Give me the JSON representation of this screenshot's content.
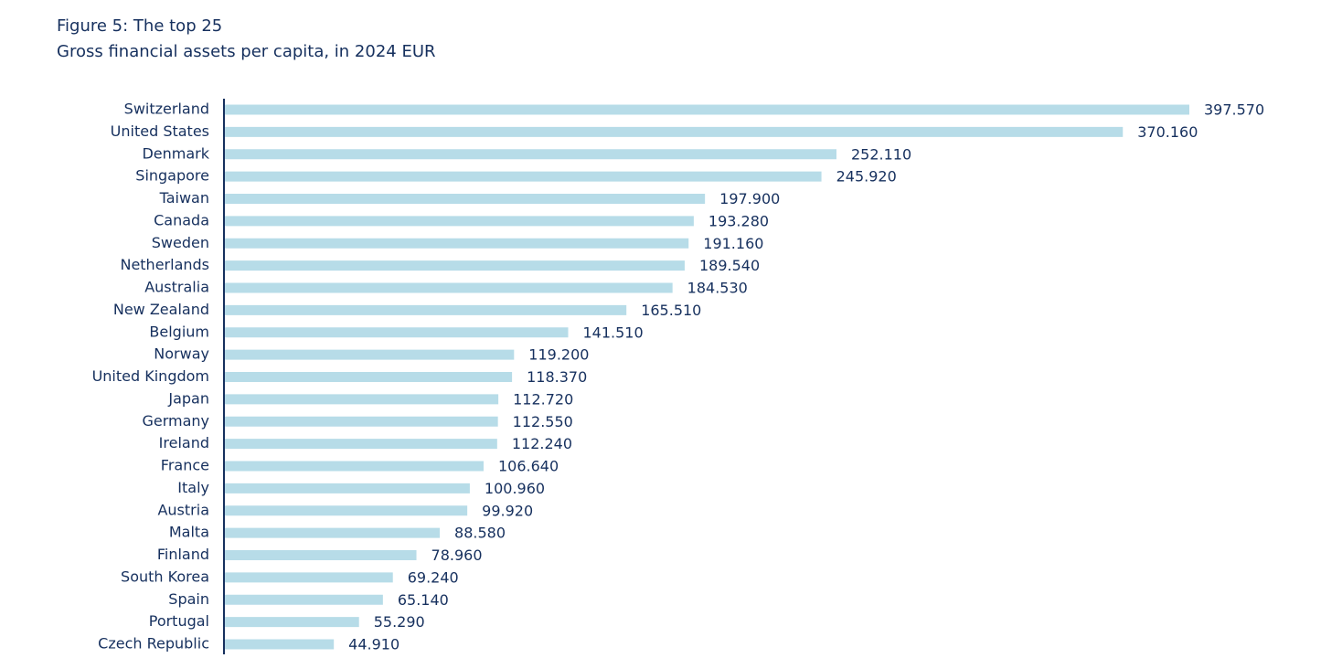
{
  "chart_data": {
    "type": "bar",
    "orientation": "horizontal",
    "title": "Figure 5: The top 25",
    "subtitle": "Gross financial assets per capita, in 2024 EUR",
    "color": "#b7dce8",
    "categories": [
      "Switzerland",
      "United States",
      "Denmark",
      "Singapore",
      "Taiwan",
      "Canada",
      "Sweden",
      "Netherlands",
      "Australia",
      "New Zealand",
      "Belgium",
      "Norway",
      "United Kingdom",
      "Japan",
      "Germany",
      "Ireland",
      "France",
      "Italy",
      "Austria",
      "Malta",
      "Finland",
      "South Korea",
      "Spain",
      "Portugal",
      "Czech Republic"
    ],
    "values": [
      397570,
      370160,
      252110,
      245920,
      197900,
      193280,
      191160,
      189540,
      184530,
      165510,
      141510,
      119200,
      118370,
      112720,
      112550,
      112240,
      106640,
      100960,
      99920,
      88580,
      78960,
      69240,
      65140,
      55290,
      44910
    ],
    "value_labels": [
      "397.570",
      "370.160",
      "252.110",
      "245.920",
      "197.900",
      "193.280",
      "191.160",
      "189.540",
      "184.530",
      "165.510",
      "141.510",
      "119.200",
      "118.370",
      "112.720",
      "112.550",
      "112.240",
      "106.640",
      "100.960",
      "99.920",
      "88.580",
      "78.960",
      "69.240",
      "65.140",
      "55.290",
      "44.910"
    ]
  }
}
